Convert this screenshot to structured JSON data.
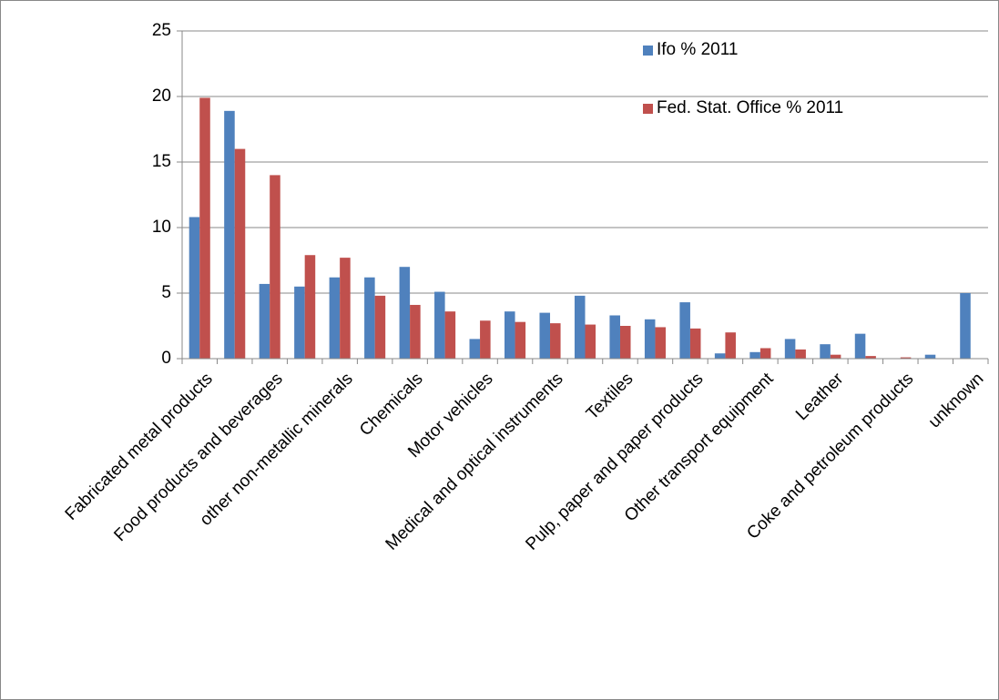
{
  "chart_data": {
    "type": "bar",
    "categories": [
      "Fabricated metal products",
      null,
      "Food products and beverages",
      null,
      "other non-metallic minerals",
      null,
      "Chemicals",
      null,
      "Motor vehicles",
      null,
      "Medical and optical instruments",
      null,
      "Textiles",
      null,
      "Pulp, paper and paper products",
      null,
      "Other transport equipment",
      null,
      "Leather",
      null,
      "Coke and petroleum products",
      null,
      "unknown"
    ],
    "series": [
      {
        "name": "Ifo % 2011",
        "color": "#4f81bd",
        "values": [
          10.8,
          18.9,
          5.7,
          5.5,
          6.2,
          6.2,
          7.0,
          5.1,
          1.5,
          3.6,
          3.5,
          4.8,
          3.3,
          3.0,
          4.3,
          0.4,
          0.5,
          1.5,
          1.1,
          1.9,
          0,
          0.3,
          5.0
        ]
      },
      {
        "name": "Fed. Stat. Office % 2011",
        "color": "#c0504d",
        "values": [
          19.9,
          16.0,
          14.0,
          7.9,
          7.7,
          4.8,
          4.1,
          3.6,
          2.9,
          2.8,
          2.7,
          2.6,
          2.5,
          2.4,
          2.3,
          2.0,
          0.8,
          0.7,
          0.3,
          0.2,
          0.1,
          0,
          0
        ]
      }
    ],
    "ylim": [
      0,
      25
    ],
    "yticks": [
      0,
      5,
      10,
      15,
      20,
      25
    ],
    "grid": true,
    "legend": "top-right"
  }
}
